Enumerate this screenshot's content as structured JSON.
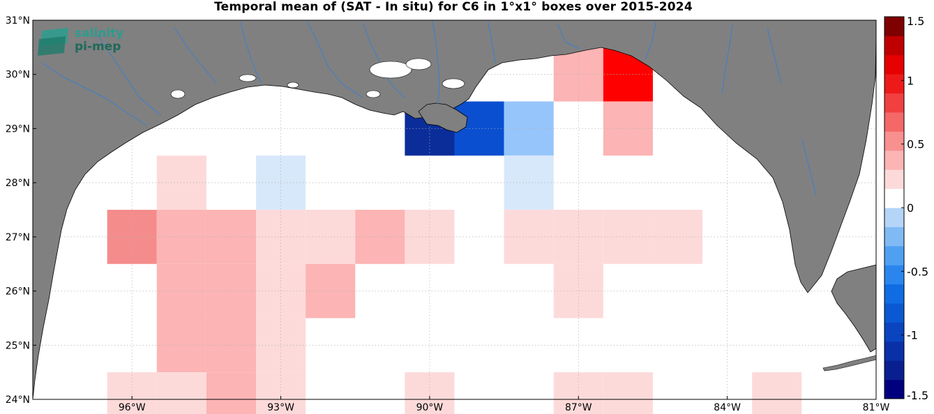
{
  "title": "Temporal mean of (SAT - In situ) for C6 in 1°x1° boxes over 2015-2024",
  "logo": {
    "line1": "salinity",
    "line2": "pi-mep"
  },
  "x_ticks": [
    {
      "lon": -96,
      "label": "96°W"
    },
    {
      "lon": -93,
      "label": "93°W"
    },
    {
      "lon": -90,
      "label": "90°W"
    },
    {
      "lon": -87,
      "label": "87°W"
    },
    {
      "lon": -84,
      "label": "84°W"
    },
    {
      "lon": -81,
      "label": "81°W"
    }
  ],
  "y_ticks": [
    {
      "lat": 24,
      "label": "24°N"
    },
    {
      "lat": 25,
      "label": "25°N"
    },
    {
      "lat": 26,
      "label": "26°N"
    },
    {
      "lat": 27,
      "label": "27°N"
    },
    {
      "lat": 28,
      "label": "28°N"
    },
    {
      "lat": 29,
      "label": "29°N"
    },
    {
      "lat": 30,
      "label": "30°N"
    },
    {
      "lat": 31,
      "label": "31°N"
    }
  ],
  "colorbar": {
    "min": -1.5,
    "max": 1.5,
    "ticks": [
      {
        "value": 1.5,
        "label": "1.5"
      },
      {
        "value": 1,
        "label": "1"
      },
      {
        "value": 0.5,
        "label": "0.5"
      },
      {
        "value": 0,
        "label": "0"
      },
      {
        "value": -0.5,
        "label": "-0.5"
      },
      {
        "value": -1,
        "label": "-1"
      },
      {
        "value": -1.5,
        "label": "-1.5"
      }
    ]
  },
  "colors": {
    "land": "#808080",
    "river": "#3a7fd0",
    "logo": "#1e7a6a"
  },
  "chart_data": {
    "type": "heatmap",
    "lon_range": [
      -98,
      -81
    ],
    "lat_range": [
      24,
      31
    ],
    "grid": true,
    "cells": [
      {
        "lon": -90,
        "lat": 29,
        "value": -1.3
      },
      {
        "lon": -89,
        "lat": 29,
        "value": -1.1
      },
      {
        "lon": -88,
        "lat": 29,
        "value": -0.4
      },
      {
        "lon": -87,
        "lat": 30,
        "value": 0.3
      },
      {
        "lon": -86,
        "lat": 30,
        "value": 0.8
      },
      {
        "lon": -86,
        "lat": 29,
        "value": 0.3
      },
      {
        "lon": -95,
        "lat": 28,
        "value": 0.15
      },
      {
        "lon": -93,
        "lat": 28,
        "value": -0.15
      },
      {
        "lon": -88,
        "lat": 28,
        "value": -0.15
      },
      {
        "lon": -96,
        "lat": 27,
        "value": 0.45
      },
      {
        "lon": -95,
        "lat": 27,
        "value": 0.3
      },
      {
        "lon": -94,
        "lat": 27,
        "value": 0.3
      },
      {
        "lon": -93,
        "lat": 27,
        "value": 0.15
      },
      {
        "lon": -92,
        "lat": 27,
        "value": 0.15
      },
      {
        "lon": -91,
        "lat": 27,
        "value": 0.3
      },
      {
        "lon": -90,
        "lat": 27,
        "value": 0.15
      },
      {
        "lon": -88,
        "lat": 27,
        "value": 0.15
      },
      {
        "lon": -87,
        "lat": 27,
        "value": 0.15
      },
      {
        "lon": -86,
        "lat": 27,
        "value": 0.15
      },
      {
        "lon": -85,
        "lat": 27,
        "value": 0.15
      },
      {
        "lon": -95,
        "lat": 26,
        "value": 0.3
      },
      {
        "lon": -94,
        "lat": 26,
        "value": 0.3
      },
      {
        "lon": -93,
        "lat": 26,
        "value": 0.15
      },
      {
        "lon": -92,
        "lat": 26,
        "value": 0.3
      },
      {
        "lon": -87,
        "lat": 26,
        "value": 0.15
      },
      {
        "lon": -95,
        "lat": 25,
        "value": 0.3
      },
      {
        "lon": -94,
        "lat": 25,
        "value": 0.3
      },
      {
        "lon": -93,
        "lat": 25,
        "value": 0.15
      },
      {
        "lon": -96,
        "lat": 24,
        "value": 0.15
      },
      {
        "lon": -95,
        "lat": 24,
        "value": 0.15
      },
      {
        "lon": -94,
        "lat": 24,
        "value": 0.3
      },
      {
        "lon": -93,
        "lat": 24,
        "value": 0.15
      },
      {
        "lon": -90,
        "lat": 24,
        "value": 0.15
      },
      {
        "lon": -87,
        "lat": 24,
        "value": 0.15
      },
      {
        "lon": -86,
        "lat": 24,
        "value": 0.15
      },
      {
        "lon": -83,
        "lat": 24,
        "value": 0.15
      }
    ]
  }
}
